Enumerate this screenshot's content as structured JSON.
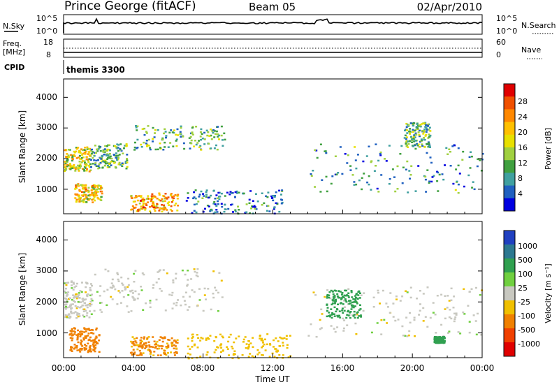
{
  "header": {
    "station": "Prince George (fitACF)",
    "beam": "Beam 05",
    "date": "02/Apr/2010"
  },
  "noise_panel": {
    "left_label": "N.Sky",
    "left_ticks": [
      "10^5",
      "10^0"
    ],
    "right_ticks": [
      "10^5",
      "10^0"
    ],
    "right_label": "N.Search"
  },
  "freq_panel": {
    "left_label_1": "Freq.",
    "left_label_2": "[MHz]",
    "left_ticks": [
      "18",
      "8"
    ],
    "right_ticks": [
      "60",
      "0"
    ],
    "right_label": "Nave"
  },
  "cpid": {
    "label": "CPID",
    "value": "themis 3300"
  },
  "axes": {
    "ylabel": "Slant Range [km]",
    "yticks": [
      "4000",
      "3000",
      "2000",
      "1000"
    ],
    "xticks": [
      "00:00",
      "04:00",
      "08:00",
      "12:00",
      "16:00",
      "20:00",
      "00:00"
    ],
    "xlabel": "Time UT"
  },
  "power_scale": {
    "label": "Power [dB]",
    "ticks": [
      "28",
      "24",
      "20",
      "16",
      "12",
      "8",
      "4"
    ],
    "colors": [
      "#e00000",
      "#f05000",
      "#ff8800",
      "#ffc000",
      "#e8e000",
      "#a0d040",
      "#40a040",
      "#40a0a0",
      "#2060c0",
      "#0000e0"
    ]
  },
  "velocity_scale": {
    "label": "Velocity [m s⁻¹]",
    "ticks": [
      "1000",
      "500",
      "100",
      "25",
      "-25",
      "-100",
      "-500",
      "-1000"
    ],
    "colors": [
      "#2040c0",
      "#2c7890",
      "#30a050",
      "#70d040",
      "#c8c8c0",
      "#f0c000",
      "#f08000",
      "#f04000",
      "#e00000"
    ]
  },
  "chart_data": [
    {
      "type": "heatmap",
      "name": "power",
      "xlabel": "Time UT",
      "ylabel": "Slant Range [km]",
      "xlim": [
        0,
        24
      ],
      "ylim": [
        200,
        4600
      ],
      "colorbar_label": "Power [dB]",
      "colorbar_ticks": [
        28,
        24,
        20,
        16,
        12,
        8,
        4
      ],
      "regions": [
        {
          "t0": 0.0,
          "t1": 1.5,
          "r0": 1600,
          "r1": 2400,
          "level": 18
        },
        {
          "t0": 0.6,
          "t1": 2.2,
          "r0": 600,
          "r1": 1200,
          "level": 20
        },
        {
          "t0": 1.5,
          "t1": 3.6,
          "r0": 1700,
          "r1": 2500,
          "level": 12
        },
        {
          "t0": 4.0,
          "t1": 9.2,
          "r0": 2300,
          "r1": 3100,
          "level": 12
        },
        {
          "t0": 3.8,
          "t1": 6.5,
          "r0": 300,
          "r1": 900,
          "level": 22
        },
        {
          "t0": 7.0,
          "t1": 12.5,
          "r0": 200,
          "r1": 1000,
          "level": 8
        },
        {
          "t0": 14.0,
          "t1": 24.0,
          "r0": 900,
          "r1": 2500,
          "level": 10
        },
        {
          "t0": 19.5,
          "t1": 21.0,
          "r0": 2400,
          "r1": 3200,
          "level": 12
        }
      ]
    },
    {
      "type": "heatmap",
      "name": "velocity",
      "xlabel": "Time UT",
      "ylabel": "Slant Range [km]",
      "xlim": [
        0,
        24
      ],
      "ylim": [
        200,
        4600
      ],
      "colorbar_label": "Velocity [m s⁻¹]",
      "colorbar_ticks": [
        1000,
        500,
        100,
        25,
        -25,
        -100,
        -500,
        -1000
      ],
      "regions": [
        {
          "t0": 0.0,
          "t1": 1.6,
          "r0": 1500,
          "r1": 2700,
          "level": 0
        },
        {
          "t0": 0.3,
          "t1": 2.0,
          "r0": 400,
          "r1": 1200,
          "level": -300
        },
        {
          "t0": 1.6,
          "t1": 9.2,
          "r0": 1700,
          "r1": 3100,
          "level": 0
        },
        {
          "t0": 3.8,
          "t1": 6.5,
          "r0": 300,
          "r1": 900,
          "level": -120
        },
        {
          "t0": 7.0,
          "t1": 13.0,
          "r0": 200,
          "r1": 1000,
          "level": -60
        },
        {
          "t0": 14.0,
          "t1": 24.0,
          "r0": 900,
          "r1": 2500,
          "level": 0
        },
        {
          "t0": 15.0,
          "t1": 17.0,
          "r0": 1500,
          "r1": 2400,
          "level": 200
        },
        {
          "t0": 21.2,
          "t1": 21.8,
          "r0": 700,
          "r1": 900,
          "level": 150
        }
      ]
    }
  ]
}
